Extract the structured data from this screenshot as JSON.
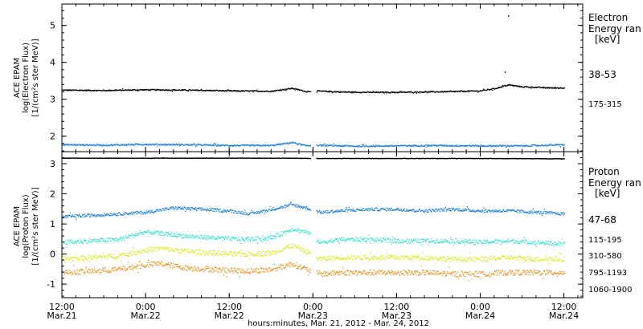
{
  "chart_data": {
    "type": "scatter",
    "xlabel": "hours:minutes, Mar. 21, 2012 - Mar. 24, 2012",
    "x_ticks": [
      {
        "line1": "12:00",
        "line2": "Mar.21",
        "hours": 0
      },
      {
        "line1": "0:00",
        "line2": "Mar.22",
        "hours": 12
      },
      {
        "line1": "12:00",
        "line2": "Mar.22",
        "hours": 24
      },
      {
        "line1": "0:00",
        "line2": "Mar.23",
        "hours": 36
      },
      {
        "line1": "12:00",
        "line2": "Mar.23",
        "hours": 48
      },
      {
        "line1": "0:00",
        "line2": "Mar.24",
        "hours": 60
      },
      {
        "line1": "12:00",
        "line2": "Mar.24",
        "hours": 72
      }
    ],
    "xlim": [
      0,
      74.7
    ],
    "panels": [
      {
        "name": "electron",
        "ylabel_lines": [
          "ACE EPAM",
          "log(Electron Flux)",
          "[1/(cm²s ster MeV)]"
        ],
        "ylim": [
          1.58,
          5.58
        ],
        "yticks": [
          2,
          3,
          4,
          5
        ],
        "legend_title": [
          "Electron",
          "Energy ran",
          "[keV]"
        ],
        "series": [
          {
            "name": "38-53",
            "color": "#000000",
            "values": [
              [
                0,
                3.26
              ],
              [
                6,
                3.25
              ],
              [
                12,
                3.27
              ],
              [
                18,
                3.26
              ],
              [
                24,
                3.24
              ],
              [
                30,
                3.23
              ],
              [
                33,
                3.31
              ],
              [
                35,
                3.22
              ],
              [
                36,
                3.24
              ],
              [
                40,
                3.21
              ],
              [
                44,
                3.2
              ],
              [
                48,
                3.2
              ],
              [
                52,
                3.21
              ],
              [
                56,
                3.22
              ],
              [
                60,
                3.24
              ],
              [
                62,
                3.3
              ],
              [
                64,
                3.4
              ],
              [
                66,
                3.35
              ],
              [
                70,
                3.32
              ],
              [
                72,
                3.32
              ]
            ]
          },
          {
            "name": "175-315",
            "color": "#1f7fd8",
            "values": [
              [
                0,
                1.78
              ],
              [
                6,
                1.77
              ],
              [
                12,
                1.79
              ],
              [
                18,
                1.78
              ],
              [
                24,
                1.76
              ],
              [
                30,
                1.76
              ],
              [
                33,
                1.84
              ],
              [
                35,
                1.75
              ],
              [
                36,
                1.77
              ],
              [
                42,
                1.74
              ],
              [
                48,
                1.75
              ],
              [
                54,
                1.76
              ],
              [
                60,
                1.75
              ],
              [
                66,
                1.75
              ],
              [
                72,
                1.78
              ]
            ]
          }
        ],
        "outliers": [
          [
            64,
            5.27
          ],
          [
            63.5,
            3.75
          ]
        ]
      },
      {
        "name": "proton",
        "ylabel_lines": [
          "ACE EPAM",
          "log(Proton Flux)",
          "[1/(cm²s ster MeV)]"
        ],
        "ylim": [
          -1.45,
          3.4
        ],
        "yticks": [
          -1,
          0,
          1,
          2,
          3
        ],
        "legend_title": [
          "Proton",
          "Energy ran",
          "[keV]"
        ],
        "series": [
          {
            "name": "47-68",
            "color": "#000000",
            "values": [
              [
                0,
                3.2
              ],
              [
                12,
                3.2
              ],
              [
                24,
                3.2
              ],
              [
                33,
                3.2
              ],
              [
                36,
                3.19
              ],
              [
                48,
                3.19
              ],
              [
                60,
                3.19
              ],
              [
                72,
                3.18
              ]
            ]
          },
          {
            "name": "115-195",
            "color": "#1f7fd8",
            "values": [
              [
                0,
                1.25
              ],
              [
                4,
                1.3
              ],
              [
                8,
                1.35
              ],
              [
                12,
                1.4
              ],
              [
                16,
                1.55
              ],
              [
                20,
                1.5
              ],
              [
                24,
                1.45
              ],
              [
                27,
                1.35
              ],
              [
                30,
                1.5
              ],
              [
                33,
                1.65
              ],
              [
                35,
                1.55
              ],
              [
                37,
                1.4
              ],
              [
                40,
                1.45
              ],
              [
                44,
                1.5
              ],
              [
                48,
                1.5
              ],
              [
                52,
                1.45
              ],
              [
                56,
                1.5
              ],
              [
                60,
                1.45
              ],
              [
                64,
                1.45
              ],
              [
                68,
                1.4
              ],
              [
                72,
                1.35
              ]
            ]
          },
          {
            "name": "310-580",
            "color": "#33e0d0",
            "values": [
              [
                0,
                0.4
              ],
              [
                4,
                0.45
              ],
              [
                8,
                0.5
              ],
              [
                12,
                0.75
              ],
              [
                14,
                0.7
              ],
              [
                18,
                0.6
              ],
              [
                22,
                0.55
              ],
              [
                26,
                0.5
              ],
              [
                30,
                0.55
              ],
              [
                33,
                0.85
              ],
              [
                35,
                0.75
              ],
              [
                37,
                0.4
              ],
              [
                40,
                0.5
              ],
              [
                44,
                0.5
              ],
              [
                48,
                0.45
              ],
              [
                52,
                0.45
              ],
              [
                56,
                0.45
              ],
              [
                60,
                0.4
              ],
              [
                64,
                0.45
              ],
              [
                68,
                0.4
              ],
              [
                72,
                0.35
              ]
            ]
          },
          {
            "name": "795-1193",
            "color": "#d8e820",
            "values": [
              [
                0,
                -0.15
              ],
              [
                4,
                -0.1
              ],
              [
                8,
                -0.05
              ],
              [
                12,
                0.15
              ],
              [
                14,
                0.2
              ],
              [
                18,
                0.1
              ],
              [
                22,
                0.05
              ],
              [
                26,
                0.0
              ],
              [
                30,
                0.05
              ],
              [
                33,
                0.3
              ],
              [
                35,
                0.1
              ],
              [
                37,
                -0.15
              ],
              [
                40,
                -0.1
              ],
              [
                44,
                -0.1
              ],
              [
                48,
                -0.1
              ],
              [
                52,
                -0.1
              ],
              [
                56,
                -0.15
              ],
              [
                60,
                -0.15
              ],
              [
                64,
                -0.1
              ],
              [
                68,
                -0.15
              ],
              [
                72,
                -0.15
              ]
            ]
          },
          {
            "name": "1060-1900",
            "color": "#e89020",
            "values": [
              [
                0,
                -0.6
              ],
              [
                4,
                -0.55
              ],
              [
                8,
                -0.5
              ],
              [
                12,
                -0.35
              ],
              [
                14,
                -0.3
              ],
              [
                18,
                -0.45
              ],
              [
                22,
                -0.5
              ],
              [
                26,
                -0.55
              ],
              [
                30,
                -0.5
              ],
              [
                33,
                -0.3
              ],
              [
                35,
                -0.5
              ],
              [
                37,
                -0.65
              ],
              [
                40,
                -0.6
              ],
              [
                44,
                -0.6
              ],
              [
                48,
                -0.6
              ],
              [
                52,
                -0.6
              ],
              [
                56,
                -0.65
              ],
              [
                60,
                -0.65
              ],
              [
                64,
                -0.6
              ],
              [
                68,
                -0.6
              ],
              [
                72,
                -0.6
              ]
            ]
          }
        ]
      }
    ]
  }
}
